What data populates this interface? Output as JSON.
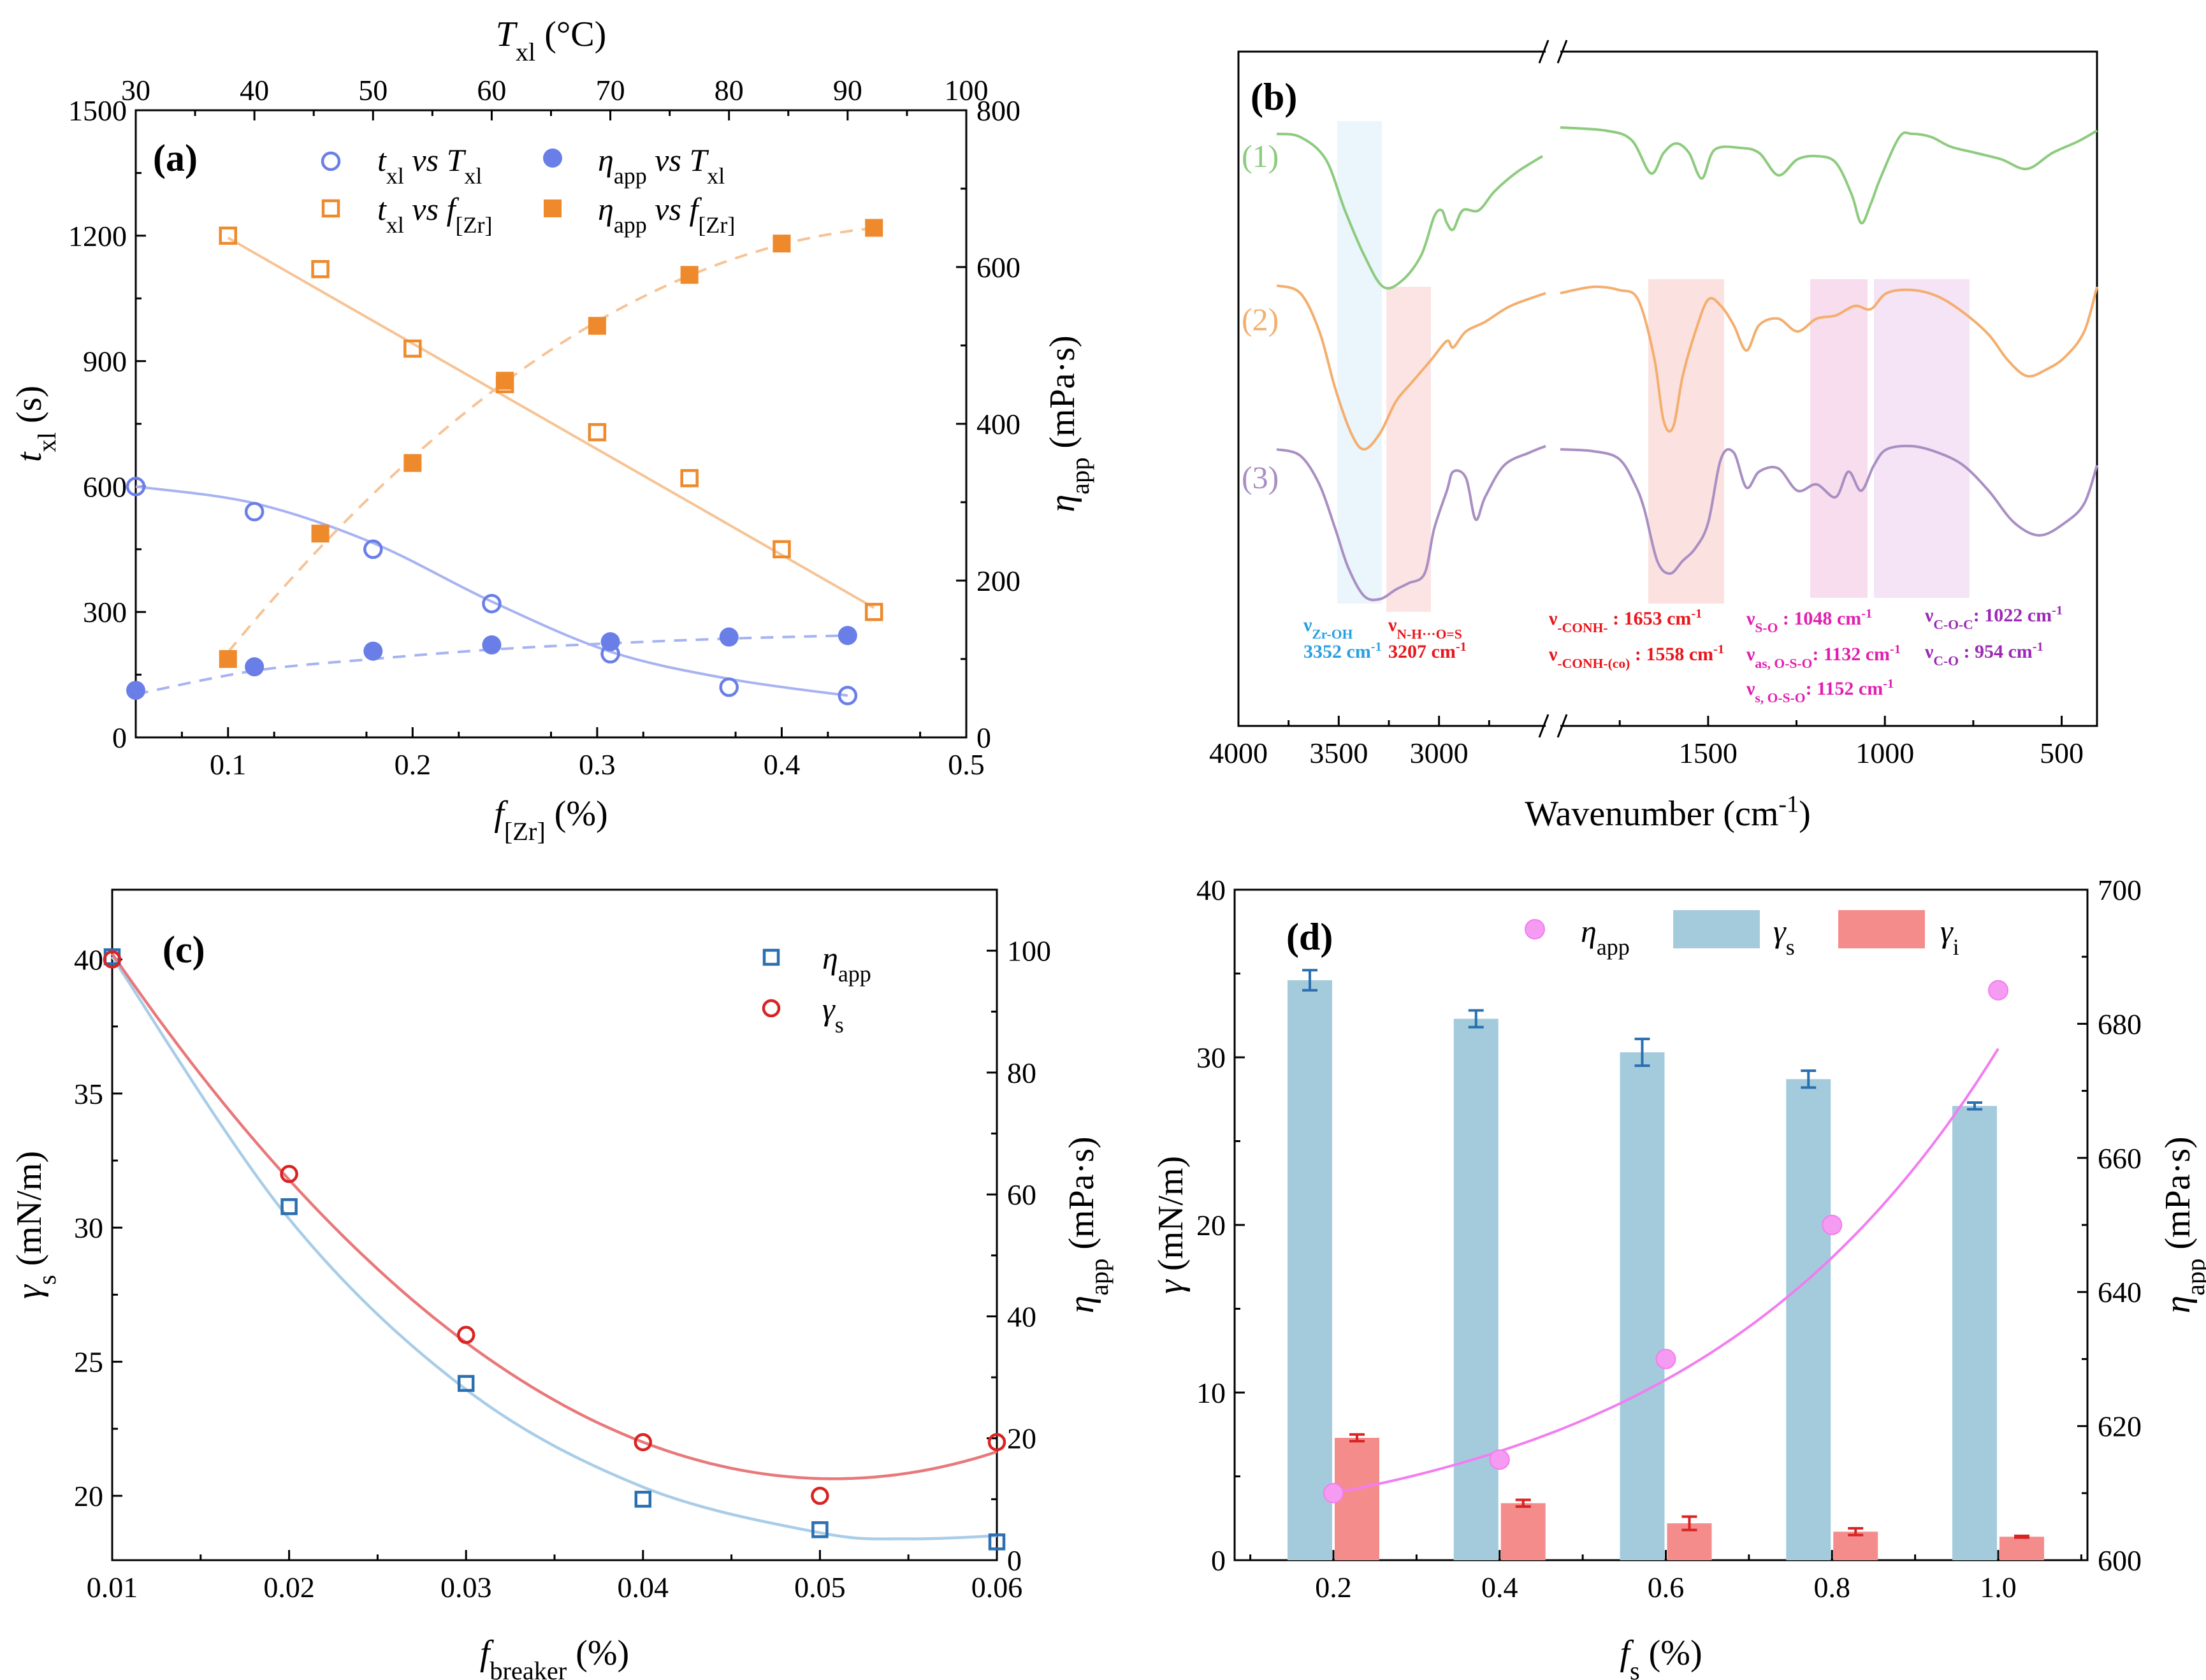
{
  "colors": {
    "blue": "#6A7EE8",
    "orange": "#EE8A2C",
    "lightblue_line": "#A9CDE8",
    "red_line": "#E8787A",
    "sq_blue": "#2A6FB0",
    "circ_red": "#D92323",
    "bar_blue": "#A4CBDC",
    "bar_red": "#F48C8C",
    "pink": "#F27DF0",
    "green": "#8DCB7E",
    "orange_spec": "#F4AE6E",
    "purple_spec": "#A98FC2",
    "ann_blue": "#2A9FE0",
    "ann_red": "#E8161B",
    "ann_pink": "#E21FB0",
    "ann_purple": "#9C28B5"
  },
  "chart_data": [
    {
      "panel": "(a)",
      "type": "scatter",
      "xlabel_main": "f",
      "xlabel_sub": "[Zr]",
      "xlabel_unit": " (%)",
      "xlim": [
        0.05,
        0.5
      ],
      "xticks": [
        "0.1",
        "0.2",
        "0.3",
        "0.4",
        "0.5"
      ],
      "top_label_main": "T",
      "top_label_sub": "xl",
      "top_label_unit": " (°C)",
      "top_lim": [
        30,
        100
      ],
      "top_ticks": [
        "30",
        "40",
        "50",
        "60",
        "70",
        "80",
        "90",
        "100"
      ],
      "ylabel_left_main": "t",
      "ylabel_left_sub": "xl",
      "ylabel_left_unit": " (s)",
      "ylim_left": [
        0,
        1500
      ],
      "yticks_left": [
        "0",
        "300",
        "600",
        "900",
        "1200",
        "1500"
      ],
      "ylabel_right_main": "η",
      "ylabel_right_sub": "app",
      "ylabel_right_unit": " (mPa·s)",
      "ylim_right": [
        0,
        800
      ],
      "yticks_right": [
        "0",
        "200",
        "400",
        "600",
        "800"
      ],
      "legend": [
        {
          "pre": "t",
          "sub1": "xl",
          "mid": " vs ",
          "post": "T",
          "sub2": "xl"
        },
        {
          "pre": "η",
          "sub1": "app",
          "mid": "  vs ",
          "post": "T",
          "sub2": "xl"
        },
        {
          "pre": "t",
          "sub1": "xl",
          "mid": " vs ",
          "post": "f",
          "sub2": "[Zr]"
        },
        {
          "pre": "η",
          "sub1": "app",
          "mid": "  vs ",
          "post": "f",
          "sub2": "[Zr]"
        }
      ],
      "series": [
        {
          "name": "t_xl vs T_xl",
          "axis": "left-top",
          "x": [
            30,
            40,
            50,
            60,
            70,
            80,
            90
          ],
          "y": [
            600,
            540,
            450,
            320,
            200,
            120,
            100
          ]
        },
        {
          "name": "eta_app vs T_xl",
          "axis": "right-top",
          "x": [
            30,
            40,
            50,
            60,
            70,
            80,
            90
          ],
          "y": [
            60,
            90,
            110,
            118,
            122,
            128,
            130
          ]
        },
        {
          "name": "t_xl vs f_Zr",
          "axis": "left-bottom",
          "x": [
            0.1,
            0.15,
            0.2,
            0.25,
            0.3,
            0.35,
            0.4,
            0.45
          ],
          "y": [
            1200,
            1120,
            930,
            845,
            730,
            620,
            450,
            300
          ]
        },
        {
          "name": "eta_app vs f_Zr",
          "axis": "right-bottom",
          "x": [
            0.1,
            0.15,
            0.2,
            0.25,
            0.3,
            0.35,
            0.4,
            0.45
          ],
          "y": [
            100,
            260,
            350,
            455,
            525,
            590,
            630,
            650
          ]
        }
      ]
    },
    {
      "panel": "(b)",
      "type": "line",
      "xlabel": "Wavenumber (cm",
      "xlabel_sup": "-1",
      "xlabel_end": ")",
      "xticks_left": [
        "4000",
        "3500",
        "3000"
      ],
      "xticks_right": [
        "1500",
        "1000",
        "500"
      ],
      "series": [
        {
          "name": "(1)"
        },
        {
          "name": "(2)"
        },
        {
          "name": "(3)"
        }
      ],
      "annotations": [
        {
          "label": "ν",
          "sub": "Zr-OH",
          "value": "3352 cm",
          "sup": "-1"
        },
        {
          "label": "ν",
          "sub": "N-H···O=S",
          "value": "3207 cm",
          "sup": "-1"
        },
        {
          "label": "ν",
          "sub": "-CONH-",
          "value": "     : 1653 cm",
          "sup": "-1"
        },
        {
          "label": "ν",
          "sub": "-CONH-(co)",
          "value": " : 1558 cm",
          "sup": "-1"
        },
        {
          "label": "ν",
          "sub": "S-O",
          "value": "     : 1048 cm",
          "sup": "-1"
        },
        {
          "label": "ν",
          "sub": "as, O-S-O",
          "value": ": 1132 cm",
          "sup": "-1"
        },
        {
          "label": "ν",
          "sub": "s, O-S-O",
          "value": ": 1152 cm",
          "sup": "-1"
        },
        {
          "label": "ν",
          "sub": "C-O-C",
          "value": ": 1022 cm",
          "sup": "-1"
        },
        {
          "label": "ν",
          "sub": "C-O",
          "value": "     :   954 cm",
          "sup": "-1"
        }
      ]
    },
    {
      "panel": "(c)",
      "type": "scatter",
      "xlabel_main": "f",
      "xlabel_sub": "breaker",
      "xlabel_unit": " (%)",
      "xlim": [
        0.01,
        0.06
      ],
      "xticks": [
        "0.01",
        "0.02",
        "0.03",
        "0.04",
        "0.05",
        "0.06"
      ],
      "ylabel_left_main": "γ",
      "ylabel_left_sub": "s",
      "ylabel_left_unit": " (mN/m)",
      "ylim_left": [
        17.6,
        42.6
      ],
      "yticks_left": [
        "20",
        "25",
        "30",
        "35",
        "40"
      ],
      "ylabel_right_main": "η",
      "ylabel_right_sub": "app",
      "ylabel_right_unit": " (mPa·s)",
      "ylim_right": [
        0,
        110
      ],
      "yticks_right": [
        "0",
        "20",
        "40",
        "60",
        "80",
        "100"
      ],
      "legend": [
        {
          "pre": "η",
          "sub1": "app"
        },
        {
          "pre": "γ",
          "sub1": "s"
        }
      ],
      "series": [
        {
          "name": "eta_app",
          "axis": "right",
          "x": [
            0.01,
            0.02,
            0.03,
            0.04,
            0.05,
            0.06
          ],
          "y": [
            99,
            58,
            29,
            10,
            5,
            3
          ]
        },
        {
          "name": "gamma_s",
          "axis": "left",
          "x": [
            0.01,
            0.02,
            0.03,
            0.04,
            0.05,
            0.06
          ],
          "y": [
            40,
            32,
            26,
            22,
            20,
            22
          ]
        }
      ]
    },
    {
      "panel": "(d)",
      "type": "bar",
      "xlabel_main": "f",
      "xlabel_sub": "s",
      "xlabel_unit": " (%)",
      "categories": [
        "0.2",
        "0.4",
        "0.6",
        "0.8",
        "1.0"
      ],
      "ylabel_left_main": "γ",
      "ylabel_left_unit": " (mN/m)",
      "ylim_left": [
        0,
        40
      ],
      "yticks_left": [
        "0",
        "10",
        "20",
        "30",
        "40"
      ],
      "ylabel_right_main": "η",
      "ylabel_right_sub": "app",
      "ylabel_right_unit": " (mPa·s)",
      "ylim_right": [
        600,
        700
      ],
      "yticks_right": [
        "600",
        "620",
        "640",
        "660",
        "680",
        "700"
      ],
      "legend": [
        {
          "pre": "η",
          "sub1": "app"
        },
        {
          "pre": "γ",
          "sub1": "s"
        },
        {
          "pre": "γ",
          "sub1": "i"
        }
      ],
      "series": [
        {
          "name": "gamma_s",
          "values": [
            34.6,
            32.3,
            30.3,
            28.7,
            27.1
          ],
          "errors": [
            0.6,
            0.5,
            0.8,
            0.5,
            0.2
          ]
        },
        {
          "name": "gamma_i",
          "values": [
            7.3,
            3.4,
            2.2,
            1.7,
            1.4
          ],
          "errors": [
            0.2,
            0.2,
            0.4,
            0.2,
            0.05
          ]
        },
        {
          "name": "eta_app",
          "values": [
            610,
            615,
            630,
            650,
            685
          ]
        }
      ]
    }
  ]
}
